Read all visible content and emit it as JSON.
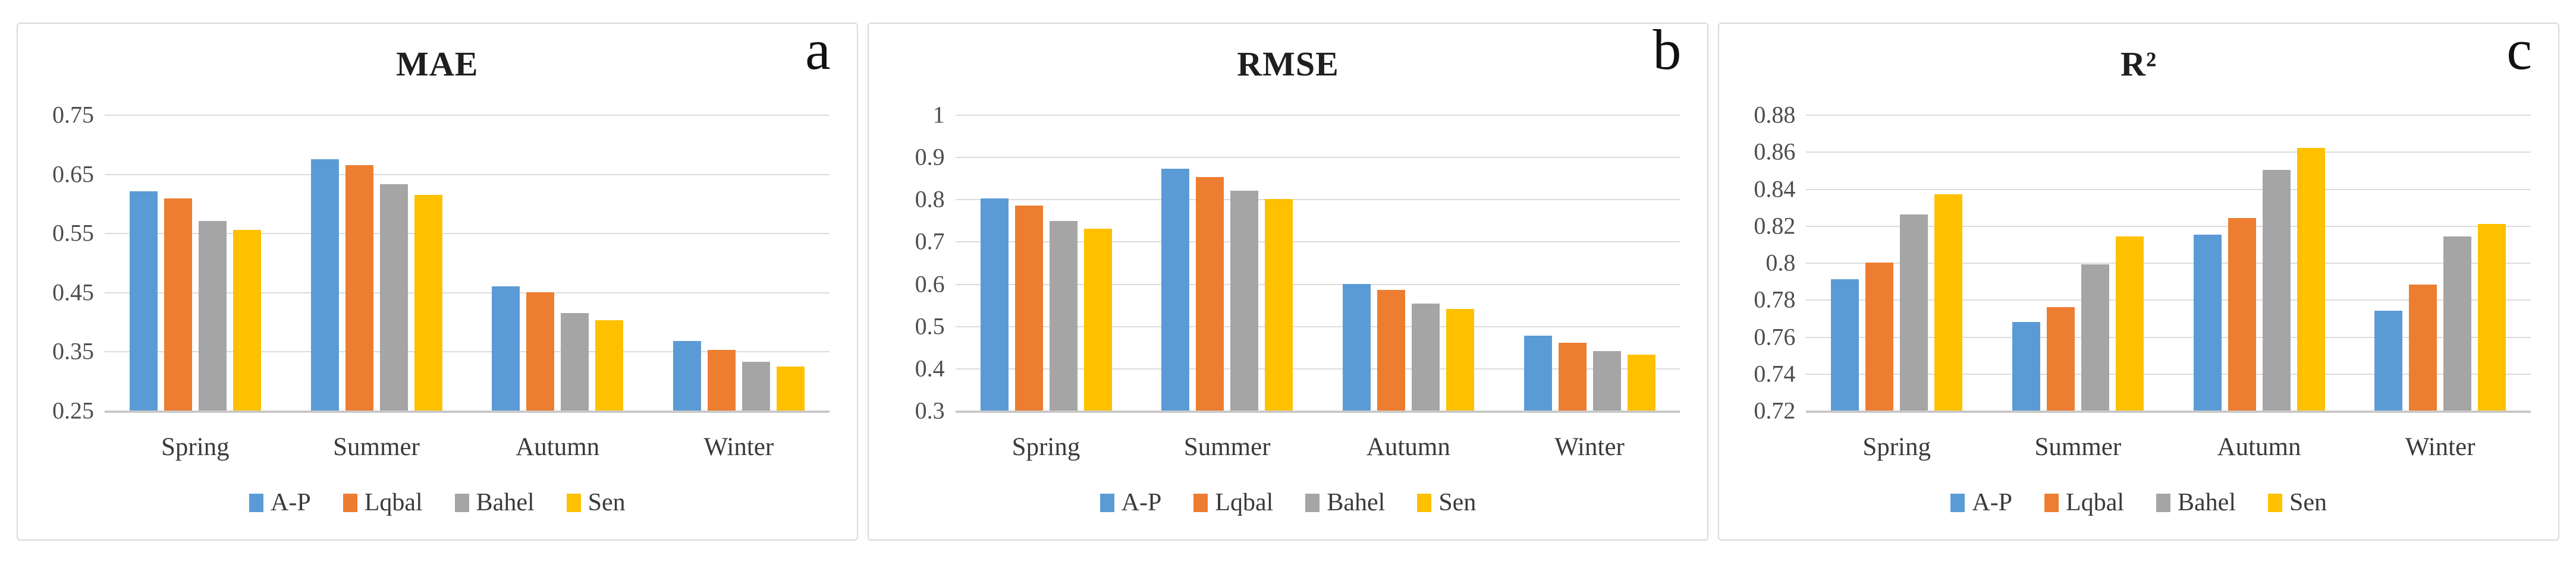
{
  "chart_data": [
    {
      "type": "bar",
      "panel_label": "a",
      "title": "MAE",
      "categories": [
        "Spring",
        "Summer",
        "Autumn",
        "Winter"
      ],
      "series": [
        {
          "name": "A-P",
          "color": "#5B9BD5",
          "values": [
            0.62,
            0.675,
            0.46,
            0.367
          ]
        },
        {
          "name": "Lqbal",
          "color": "#ED7D31",
          "values": [
            0.608,
            0.665,
            0.45,
            0.352
          ]
        },
        {
          "name": "Bahel",
          "color": "#A5A5A5",
          "values": [
            0.57,
            0.633,
            0.415,
            0.332
          ]
        },
        {
          "name": "Sen",
          "color": "#FFC000",
          "values": [
            0.555,
            0.614,
            0.403,
            0.324
          ]
        }
      ],
      "ylim": [
        0.25,
        0.75
      ],
      "yticks": [
        "0.25",
        "0.35",
        "0.45",
        "0.55",
        "0.65",
        "0.75"
      ],
      "grid": true,
      "legend_position": "bottom"
    },
    {
      "type": "bar",
      "panel_label": "b",
      "title": "RMSE",
      "categories": [
        "Spring",
        "Summer",
        "Autumn",
        "Winter"
      ],
      "series": [
        {
          "name": "A-P",
          "color": "#5B9BD5",
          "values": [
            0.802,
            0.872,
            0.6,
            0.477
          ]
        },
        {
          "name": "Lqbal",
          "color": "#ED7D31",
          "values": [
            0.785,
            0.853,
            0.585,
            0.46
          ]
        },
        {
          "name": "Bahel",
          "color": "#A5A5A5",
          "values": [
            0.748,
            0.82,
            0.553,
            0.44
          ]
        },
        {
          "name": "Sen",
          "color": "#FFC000",
          "values": [
            0.73,
            0.8,
            0.54,
            0.432
          ]
        }
      ],
      "ylim": [
        0.3,
        1.0
      ],
      "yticks": [
        "0.3",
        "0.4",
        "0.5",
        "0.6",
        "0.7",
        "0.8",
        "0.9",
        "1"
      ],
      "grid": true,
      "legend_position": "bottom"
    },
    {
      "type": "bar",
      "panel_label": "c",
      "title": "R²",
      "categories": [
        "Spring",
        "Summer",
        "Autumn",
        "Winter"
      ],
      "series": [
        {
          "name": "A-P",
          "color": "#5B9BD5",
          "values": [
            0.791,
            0.768,
            0.815,
            0.774
          ]
        },
        {
          "name": "Lqbal",
          "color": "#ED7D31",
          "values": [
            0.8,
            0.776,
            0.824,
            0.788
          ]
        },
        {
          "name": "Bahel",
          "color": "#A5A5A5",
          "values": [
            0.826,
            0.799,
            0.85,
            0.814
          ]
        },
        {
          "name": "Sen",
          "color": "#FFC000",
          "values": [
            0.837,
            0.814,
            0.862,
            0.821
          ]
        }
      ],
      "ylim": [
        0.72,
        0.88
      ],
      "yticks": [
        "0.72",
        "0.74",
        "0.76",
        "0.78",
        "0.8",
        "0.82",
        "0.84",
        "0.86",
        "0.88"
      ],
      "grid": true,
      "legend_position": "bottom"
    }
  ]
}
